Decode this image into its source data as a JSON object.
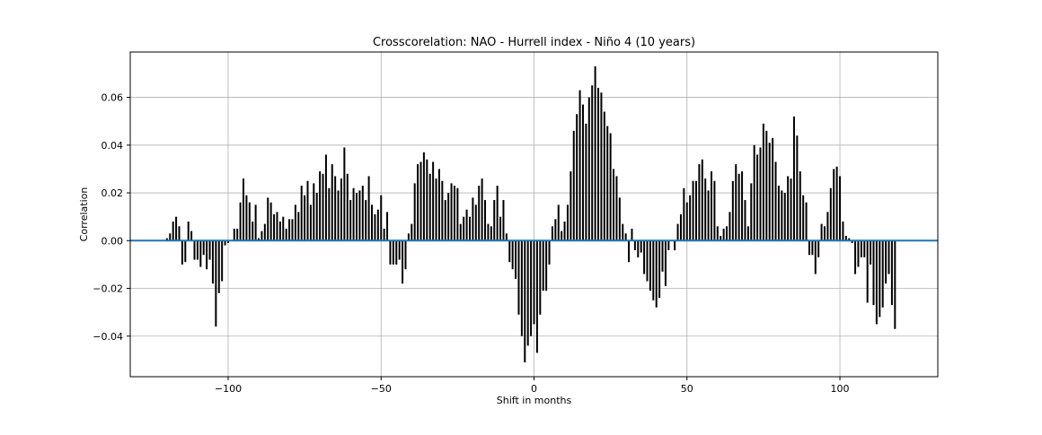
{
  "chart_data": {
    "type": "bar",
    "title": "Crosscorelation: NAO - Hurrell index - Niño 4 (10 years)",
    "xlabel": "Shift in months",
    "ylabel": "Correlation",
    "xlim": [
      -132,
      132
    ],
    "ylim": [
      -0.057,
      0.079
    ],
    "xticks": [
      -100,
      -50,
      0,
      50,
      100
    ],
    "xtick_labels": [
      "−100",
      "−50",
      "0",
      "50",
      "100"
    ],
    "yticks": [
      -0.04,
      -0.02,
      0.0,
      0.02,
      0.04,
      0.06
    ],
    "ytick_labels": [
      "−0.04",
      "−0.02",
      "0.00",
      "0.02",
      "0.04",
      "0.06"
    ],
    "grid": true,
    "bar_color": "#000000",
    "baseline_color": "#1f77b4",
    "x_start": -120,
    "x_step": 1,
    "values": [
      0.001,
      0.003,
      0.008,
      0.01,
      0.006,
      -0.01,
      -0.009,
      0.008,
      0.004,
      -0.008,
      -0.008,
      -0.011,
      -0.006,
      -0.012,
      -0.008,
      -0.018,
      -0.036,
      -0.022,
      -0.017,
      -0.002,
      -0.001,
      0,
      0.005,
      0.005,
      0.016,
      0.026,
      0.019,
      0.016,
      0.008,
      0.015,
      0.001,
      0.004,
      0.007,
      0.018,
      0.016,
      0.011,
      0.012,
      0.008,
      0.01,
      0.005,
      0.009,
      0.009,
      0.015,
      0.012,
      0.023,
      0.019,
      0.025,
      0.015,
      0.024,
      0.02,
      0.029,
      0.028,
      0.036,
      0.022,
      0.032,
      0.027,
      0.021,
      0.026,
      0.039,
      0.028,
      0.017,
      0.022,
      0.02,
      0.021,
      0.023,
      0.017,
      0.027,
      0.015,
      0.011,
      0.013,
      0.019,
      0.005,
      0.012,
      -0.01,
      -0.01,
      -0.01,
      -0.008,
      -0.018,
      -0.012,
      0.003,
      0.007,
      0.024,
      0.032,
      0.033,
      0.037,
      0.034,
      0.028,
      0.033,
      0.026,
      0.03,
      0.025,
      0.017,
      0.02,
      0.024,
      0.023,
      0.022,
      0.007,
      0.01,
      0.013,
      0.01,
      0.018,
      0.015,
      0.023,
      0.026,
      0.017,
      0.007,
      0.006,
      0.017,
      0.023,
      0.01,
      0.017,
      0.003,
      -0.009,
      -0.012,
      -0.016,
      -0.031,
      -0.04,
      -0.051,
      -0.044,
      -0.04,
      -0.035,
      -0.047,
      -0.031,
      -0.021,
      -0.021,
      -0.01,
      0.006,
      0.009,
      0.015,
      0.004,
      0.008,
      0.015,
      0.029,
      0.046,
      0.053,
      0.063,
      0.057,
      0.049,
      0.06,
      0.065,
      0.073,
      0.064,
      0.062,
      0.054,
      0.048,
      0.045,
      0.03,
      0.027,
      0.018,
      0.007,
      0.003,
      -0.009,
      0.005,
      -0.004,
      -0.007,
      -0.005,
      -0.014,
      -0.017,
      -0.021,
      -0.025,
      -0.028,
      -0.024,
      -0.013,
      -0.019,
      -0.004,
      0,
      -0.004,
      0.007,
      0.011,
      0.022,
      0.016,
      0.019,
      0.025,
      0.025,
      0.032,
      0.034,
      0.026,
      0.021,
      0.029,
      0.025,
      0.006,
      0.002,
      0.005,
      0.006,
      0.012,
      0.025,
      0.032,
      0.028,
      0.029,
      0.017,
      0.006,
      0.024,
      0.04,
      0.036,
      0.039,
      0.049,
      0.046,
      0.041,
      0.043,
      0.033,
      0.023,
      0.021,
      0.02,
      0.027,
      0.026,
      0.052,
      0.044,
      0.029,
      0.019,
      0.016,
      -0.006,
      -0.006,
      -0.014,
      -0.007,
      0.007,
      0.006,
      0.012,
      0.022,
      0.03,
      0.031,
      0.027,
      0.008,
      0.002,
      0.001,
      -0.001,
      -0.014,
      -0.011,
      -0.007,
      -0.007,
      -0.026,
      -0.01,
      -0.027,
      -0.035,
      -0.032,
      -0.028,
      -0.018,
      -0.014,
      -0.027,
      -0.037
    ]
  }
}
